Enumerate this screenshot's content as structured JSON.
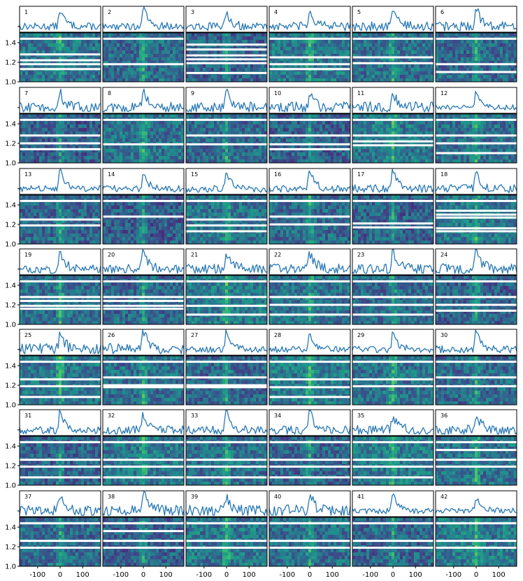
{
  "chart_data": {
    "type": "line",
    "description_of_layout": "",
    "grid": "7 rows x 6 columns of paired panels: top = spectrum line profile, bottom = 2D spectrum image",
    "colormap": "viridis",
    "line_color": "#2878b5",
    "x_ticks": [
      -100,
      0,
      100
    ],
    "x_tick_labels": [
      "-100",
      "0",
      "100"
    ],
    "xlim": [
      -180,
      180
    ],
    "y_ticks": [
      1.0,
      1.2,
      1.4
    ],
    "y_tick_labels": [
      "1.0",
      "1.2",
      "1.4"
    ],
    "ylim": [
      1.0,
      1.5
    ],
    "peak_position": 0,
    "panels": [
      {
        "label": "1",
        "gaps": [
          1.44,
          1.28,
          1.22,
          1.18,
          1.13
        ]
      },
      {
        "label": "2",
        "gaps": [
          1.44,
          1.18
        ]
      },
      {
        "label": "3",
        "gaps": [
          1.38,
          1.33,
          1.27,
          1.23,
          1.19,
          1.09
        ]
      },
      {
        "label": "4",
        "gaps": [
          1.44,
          1.25,
          1.18,
          1.13
        ]
      },
      {
        "label": "5",
        "gaps": [
          1.44,
          1.25,
          1.19
        ]
      },
      {
        "label": "6",
        "gaps": [
          1.44,
          1.18,
          1.1
        ]
      },
      {
        "label": "7",
        "gaps": [
          1.44,
          1.28,
          1.2,
          1.14
        ]
      },
      {
        "label": "8",
        "gaps": [
          1.44,
          1.19
        ]
      },
      {
        "label": "9",
        "gaps": [
          1.44,
          1.28,
          1.19
        ]
      },
      {
        "label": "10",
        "gaps": [
          1.44,
          1.28,
          1.19,
          1.14
        ]
      },
      {
        "label": "11",
        "gaps": [
          1.44,
          1.28,
          1.22,
          1.18
        ]
      },
      {
        "label": "12",
        "gaps": [
          1.44,
          1.28,
          1.2,
          1.1
        ]
      },
      {
        "label": "13",
        "gaps": [
          1.44,
          1.25,
          1.19
        ]
      },
      {
        "label": "14",
        "gaps": [
          1.44,
          1.28
        ]
      },
      {
        "label": "15",
        "gaps": [
          1.44,
          1.25,
          1.19,
          1.13
        ]
      },
      {
        "label": "16",
        "gaps": [
          1.44,
          1.28,
          1.2
        ]
      },
      {
        "label": "17",
        "gaps": [
          1.44,
          1.21,
          1.17
        ]
      },
      {
        "label": "18",
        "gaps": [
          1.44,
          1.34,
          1.3,
          1.27,
          1.16,
          1.13
        ]
      },
      {
        "label": "19",
        "gaps": [
          1.44,
          1.28,
          1.24,
          1.19,
          1.16
        ]
      },
      {
        "label": "20",
        "gaps": [
          1.44,
          1.28,
          1.24,
          1.19,
          1.16
        ]
      },
      {
        "label": "21",
        "gaps": [
          1.44,
          1.28,
          1.19,
          1.1
        ]
      },
      {
        "label": "22",
        "gaps": [
          1.44,
          1.28,
          1.2,
          1.1
        ]
      },
      {
        "label": "23",
        "gaps": [
          1.44,
          1.28,
          1.2,
          1.1
        ]
      },
      {
        "label": "24",
        "gaps": [
          1.44,
          1.28,
          1.2,
          1.14
        ]
      },
      {
        "label": "25",
        "gaps": [
          1.44,
          1.26,
          1.19,
          1.08
        ]
      },
      {
        "label": "26",
        "gaps": [
          1.44,
          1.28,
          1.2,
          1.18
        ]
      },
      {
        "label": "27",
        "gaps": [
          1.44,
          1.28,
          1.2,
          1.18
        ]
      },
      {
        "label": "28",
        "gaps": [
          1.44,
          1.26,
          1.18,
          1.08
        ]
      },
      {
        "label": "29",
        "gaps": [
          1.44,
          1.26,
          1.19
        ]
      },
      {
        "label": "30",
        "gaps": [
          1.44,
          1.28,
          1.19
        ]
      },
      {
        "label": "31",
        "gaps": [
          1.44,
          1.26,
          1.19,
          1.08
        ]
      },
      {
        "label": "32",
        "gaps": [
          1.44,
          1.26,
          1.19,
          1.08
        ]
      },
      {
        "label": "33",
        "gaps": [
          1.44,
          1.26,
          1.19,
          1.08
        ]
      },
      {
        "label": "34",
        "gaps": [
          1.44,
          1.26,
          1.19,
          1.08
        ]
      },
      {
        "label": "35",
        "gaps": [
          1.44,
          1.26,
          1.19,
          1.08
        ]
      },
      {
        "label": "36",
        "gaps": [
          1.44,
          1.36,
          1.26,
          1.19
        ]
      },
      {
        "label": "37",
        "gaps": [
          1.44,
          1.26,
          1.19
        ]
      },
      {
        "label": "38",
        "gaps": [
          1.44,
          1.36,
          1.26,
          1.19
        ]
      },
      {
        "label": "39",
        "gaps": [
          1.44,
          1.26,
          1.19
        ]
      },
      {
        "label": "40",
        "gaps": [
          1.44,
          1.26,
          1.19
        ]
      },
      {
        "label": "41",
        "gaps": [
          1.44,
          1.26,
          1.19
        ]
      },
      {
        "label": "42",
        "gaps": [
          1.44,
          1.26,
          1.19
        ]
      }
    ]
  }
}
